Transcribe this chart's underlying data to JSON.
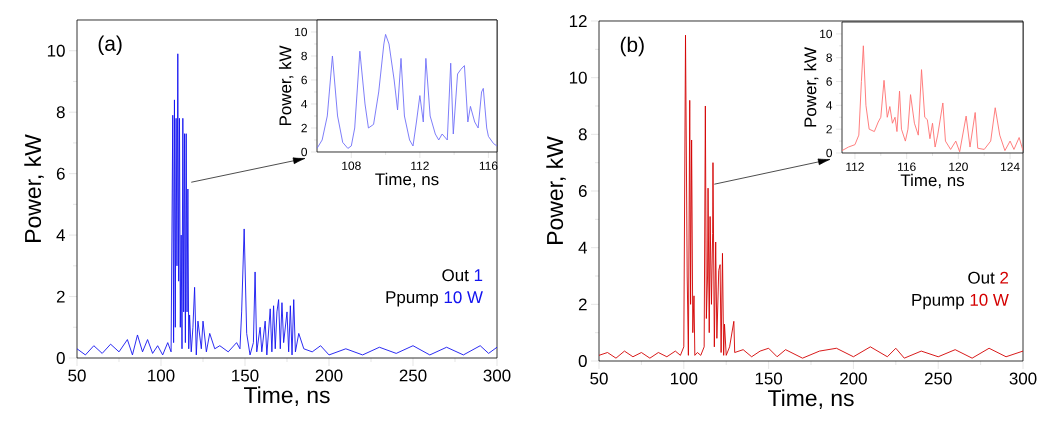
{
  "chart_data": [
    {
      "type": "line",
      "xlabel": "Time, ns",
      "ylabel": "Power, kW",
      "xlim": [
        50,
        300
      ],
      "ylim": [
        0,
        11
      ],
      "xticks": [
        50,
        100,
        150,
        200,
        250,
        300
      ],
      "yticks": [
        0,
        2,
        4,
        6,
        8,
        10
      ],
      "annotations": [
        "(a)",
        "Out",
        "1",
        "Ppump",
        "10 W"
      ],
      "x": [
        50,
        55,
        60,
        65,
        70,
        75,
        80,
        83,
        86,
        89,
        92,
        95,
        98,
        101,
        104,
        106,
        107,
        107.5,
        108,
        108.5,
        109,
        109.5,
        110,
        110.5,
        111,
        111.5,
        112,
        112.5,
        113,
        113.5,
        114,
        114.5,
        115,
        115.5,
        116,
        116.5,
        117,
        118,
        119,
        120,
        121,
        122,
        124,
        125,
        127,
        129,
        132,
        135,
        140,
        145,
        147,
        148,
        149.5,
        151,
        153,
        155,
        156,
        157,
        159,
        160,
        162,
        163,
        165,
        166,
        167,
        168,
        169,
        170,
        171,
        172,
        173,
        175,
        176,
        177,
        178,
        179,
        180,
        182,
        185,
        190,
        195,
        200,
        210,
        220,
        230,
        240,
        250,
        260,
        270,
        280,
        290,
        295,
        300
      ],
      "series": [
        {
          "color": "#1414f0",
          "values": [
            0.3,
            0.1,
            0.4,
            0.15,
            0.45,
            0.2,
            0.6,
            0.1,
            0.75,
            0.2,
            0.6,
            0.15,
            0.4,
            0.1,
            0.5,
            0.2,
            7.9,
            0.5,
            8.4,
            1.0,
            7.8,
            3.0,
            9.9,
            2.5,
            7.8,
            1.0,
            4.0,
            0.3,
            7.8,
            1.5,
            7.3,
            0.5,
            7.3,
            1.5,
            5.5,
            0.3,
            1.4,
            0.2,
            1.0,
            2.3,
            0.1,
            1.2,
            0.3,
            1.2,
            0.2,
            0.8,
            0.3,
            0.4,
            0.2,
            0.5,
            0.3,
            1.5,
            4.2,
            0.8,
            0.1,
            0.5,
            2.8,
            0.2,
            1.0,
            0.2,
            1.2,
            0.1,
            1.6,
            0.2,
            1.7,
            0.3,
            1.5,
            1.9,
            0.3,
            1.8,
            0.5,
            1.5,
            0.2,
            1.7,
            0.1,
            1.9,
            0.2,
            0.8,
            0.3,
            0.2,
            0.4,
            0.1,
            0.3,
            0.1,
            0.35,
            0.15,
            0.4,
            0.1,
            0.35,
            0.1,
            0.4,
            0.15,
            0.35
          ]
        }
      ]
    },
    {
      "type": "line",
      "xlabel": "Time, ns",
      "ylabel": "Power, kW",
      "xlim": [
        106,
        116.5
      ],
      "ylim": [
        0,
        11
      ],
      "xticks": [
        108,
        112,
        116
      ],
      "yticks": [
        0,
        2,
        4,
        6,
        8,
        10
      ],
      "x": [
        106,
        106.3,
        106.6,
        106.9,
        107.2,
        107.5,
        107.8,
        108.0,
        108.2,
        108.5,
        108.8,
        109.0,
        109.3,
        109.6,
        109.9,
        110.0,
        110.2,
        110.5,
        110.7,
        110.9,
        111.1,
        111.4,
        111.6,
        111.8,
        112.0,
        112.2,
        112.35,
        112.6,
        112.9,
        113.1,
        113.3,
        113.6,
        113.8,
        113.95,
        114.2,
        114.4,
        114.6,
        114.8,
        114.95,
        115.2,
        115.4,
        115.6,
        115.7,
        115.9,
        116.0,
        116.3,
        116.5
      ],
      "series": [
        {
          "color": "#6f6ff8",
          "values": [
            0.3,
            1.0,
            3.0,
            8.0,
            3.0,
            0.8,
            0.3,
            0.5,
            2.0,
            8.4,
            4.0,
            2.0,
            2.3,
            5.0,
            9.0,
            9.8,
            9.0,
            6.0,
            3.5,
            7.8,
            3.0,
            1.0,
            0.5,
            2.5,
            4.7,
            2.5,
            7.8,
            3.0,
            1.5,
            1.0,
            1.5,
            1.0,
            7.4,
            1.5,
            6.5,
            6.9,
            7.2,
            2.5,
            3.8,
            2.5,
            2.0,
            5.0,
            5.3,
            2.0,
            1.3,
            0.7,
            0.5
          ]
        }
      ]
    },
    {
      "type": "line",
      "xlabel": "Time, ns",
      "ylabel": "Power, kW",
      "xlim": [
        50,
        300
      ],
      "ylim": [
        0,
        12
      ],
      "xticks": [
        50,
        100,
        150,
        200,
        250,
        300
      ],
      "yticks": [
        0,
        2,
        4,
        6,
        8,
        10,
        12
      ],
      "annotations": [
        "(b)",
        "Out",
        "2",
        "Ppump",
        "10 W"
      ],
      "x": [
        50,
        55,
        60,
        65,
        70,
        75,
        80,
        85,
        90,
        95,
        98,
        100,
        100.5,
        101,
        102,
        102.7,
        103.5,
        104,
        104.6,
        105.3,
        106,
        106.5,
        108,
        110,
        112,
        112.7,
        113.3,
        114,
        114.3,
        115,
        115.5,
        116.3,
        117,
        117.2,
        118,
        118.8,
        119.5,
        120.6,
        121.4,
        122,
        122.8,
        123.5,
        124,
        125,
        127,
        129.5,
        130,
        135,
        140,
        145,
        150,
        155,
        160,
        170,
        180,
        190,
        200,
        210,
        220,
        225,
        230,
        240,
        250,
        260,
        270,
        280,
        290,
        300
      ],
      "series": [
        {
          "color": "#d40000",
          "values": [
            0.2,
            0.3,
            0.1,
            0.35,
            0.15,
            0.3,
            0.1,
            0.3,
            0.15,
            0.35,
            0.2,
            0.5,
            6.0,
            11.5,
            3.0,
            0.2,
            9.2,
            2.0,
            7.8,
            1.0,
            2.3,
            0.2,
            0.3,
            0.2,
            0.5,
            9.0,
            1.5,
            3.0,
            6.1,
            1.0,
            5.1,
            2.0,
            4.5,
            7.0,
            0.5,
            4.2,
            0.8,
            3.2,
            3.4,
            0.3,
            3.8,
            0.2,
            1.3,
            0.2,
            0.5,
            1.4,
            0.3,
            0.4,
            0.15,
            0.35,
            0.45,
            0.15,
            0.4,
            0.1,
            0.35,
            0.45,
            0.15,
            0.5,
            0.15,
            0.45,
            0.1,
            0.35,
            0.15,
            0.4,
            0.1,
            0.45,
            0.15,
            0.35
          ]
        }
      ]
    },
    {
      "type": "line",
      "xlabel": "Time, ns",
      "ylabel": "Power, kW",
      "xlim": [
        111,
        125
      ],
      "ylim": [
        0,
        11
      ],
      "xticks": [
        112,
        116,
        120,
        124
      ],
      "yticks": [
        0,
        2,
        4,
        6,
        8,
        10
      ],
      "x": [
        111,
        111.5,
        112,
        112.3,
        112.5,
        112.65,
        112.85,
        113.1,
        113.5,
        113.8,
        114.0,
        114.25,
        114.5,
        114.7,
        114.9,
        115.1,
        115.25,
        115.45,
        115.6,
        115.9,
        116.1,
        116.3,
        116.6,
        116.9,
        117.15,
        117.4,
        117.6,
        117.8,
        118.0,
        118.2,
        118.4,
        118.8,
        119.0,
        119.4,
        119.8,
        120.1,
        120.6,
        120.9,
        121.3,
        121.5,
        122.0,
        122.5,
        122.85,
        123.2,
        123.6,
        124.0,
        124.3,
        124.7,
        125
      ],
      "series": [
        {
          "color": "#ff7070",
          "values": [
            0.2,
            0.5,
            0.7,
            1.5,
            6.0,
            9.0,
            4.0,
            2.0,
            1.8,
            2.6,
            3.0,
            6.1,
            3.0,
            3.9,
            2.5,
            3.0,
            1.8,
            5.2,
            2.0,
            1.0,
            2.0,
            4.9,
            2.5,
            1.5,
            7.0,
            3.0,
            2.8,
            1.2,
            2.5,
            0.5,
            1.5,
            4.2,
            1.0,
            0.3,
            1.0,
            0.1,
            3.1,
            0.5,
            3.4,
            0.4,
            0.3,
            1.0,
            3.8,
            1.5,
            0.2,
            1.0,
            0.3,
            1.3,
            0.2
          ]
        }
      ]
    }
  ]
}
